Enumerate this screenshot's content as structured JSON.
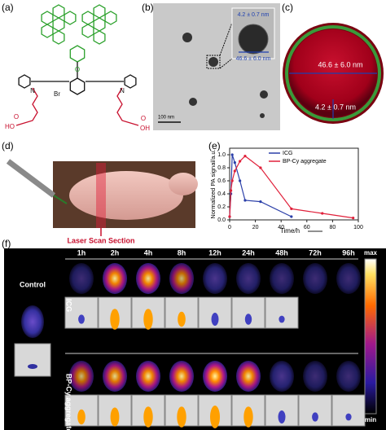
{
  "panels": {
    "a": "(a)",
    "b": "(b)",
    "c": "(c)",
    "d": "(d)",
    "e": "(e)",
    "f": "(f)"
  },
  "structure": {
    "atoms": [
      "N",
      "N",
      "O",
      "Br",
      "HO",
      "O",
      "O",
      "OH"
    ]
  },
  "tem": {
    "scale_bar": "100 nm",
    "core": "4.2 ± 0.7 nm",
    "shell": "46.6 ± 6.0 nm"
  },
  "model": {
    "shell": "46.6 ± 6.0 nm",
    "core": "4.2 ± 0.7 nm"
  },
  "mouse": {
    "label": "Laser Scan Section"
  },
  "chart_data": {
    "type": "line",
    "xlabel": "Time/h",
    "ylabel": "Normalized PA signal/a.u.",
    "x": [
      0,
      1,
      2,
      4,
      8,
      12,
      24,
      48,
      72,
      96
    ],
    "series": [
      {
        "name": "ICG",
        "color": "#2b3fa8",
        "values": [
          0.05,
          0.4,
          1.0,
          0.88,
          0.6,
          0.3,
          0.28,
          0.05,
          null,
          null
        ]
      },
      {
        "name": "BP-Cy aggregate",
        "color": "#e0203a",
        "values": [
          0.05,
          0.45,
          0.6,
          0.75,
          0.9,
          0.98,
          0.8,
          0.17,
          0.1,
          0.03
        ]
      }
    ],
    "xlim": [
      0,
      100
    ],
    "xticks": [
      0,
      20,
      40,
      60,
      80,
      100
    ],
    "ylim": [
      0,
      1.1
    ],
    "yticks": [
      {
        "value": 0,
        "label": "0.0"
      },
      {
        "value": 0.2,
        "label": "0.2"
      },
      {
        "value": 0.4,
        "label": "0.4"
      },
      {
        "value": 0.6,
        "label": "0.6"
      },
      {
        "value": 0.8,
        "label": "0.8"
      },
      {
        "value": 1,
        "label": "1.0"
      }
    ],
    "legend": "upper-right"
  },
  "imaging": {
    "times": [
      "1h",
      "2h",
      "4h",
      "8h",
      "12h",
      "24h",
      "48h",
      "72h",
      "96h"
    ],
    "control": "Control",
    "rows": [
      "ICG",
      "BP-Cy aggregate"
    ],
    "colorbar": {
      "max": "max",
      "min": "min"
    }
  }
}
